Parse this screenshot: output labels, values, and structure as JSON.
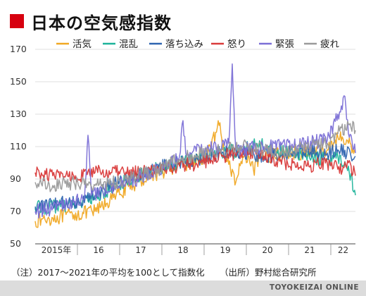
{
  "header": {
    "title": "日本の空気感指数"
  },
  "chart_data": {
    "type": "line",
    "title": "日本の空気感指数",
    "ylim": [
      50,
      170
    ],
    "y_ticks": [
      50,
      70,
      90,
      110,
      130,
      150,
      170
    ],
    "x_range": [
      "2015-01",
      "2022-08"
    ],
    "x_tick_labels": [
      {
        "label": "2015年",
        "year": 2015
      },
      {
        "label": "16",
        "year": 2016
      },
      {
        "label": "17",
        "year": 2017
      },
      {
        "label": "18",
        "year": 2018
      },
      {
        "label": "19",
        "year": 2019
      },
      {
        "label": "20",
        "year": 2020
      },
      {
        "label": "21",
        "year": 2021
      },
      {
        "label": "22",
        "year": 2022
      }
    ],
    "grid": "horizontal",
    "legend_placement": "top",
    "series": [
      {
        "name": "活気",
        "color": "#f0a823",
        "points": [
          [
            "2015-01",
            64
          ],
          [
            "2015-06",
            66
          ],
          [
            "2015-12",
            68
          ],
          [
            "2016-06",
            70
          ],
          [
            "2016-12",
            80
          ],
          [
            "2017-06",
            88
          ],
          [
            "2017-12",
            94
          ],
          [
            "2018-06",
            98
          ],
          [
            "2018-12",
            102
          ],
          [
            "2019-03",
            108
          ],
          [
            "2019-05",
            126
          ],
          [
            "2019-07",
            104
          ],
          [
            "2019-10",
            88
          ],
          [
            "2019-12",
            104
          ],
          [
            "2020-03",
            96
          ],
          [
            "2020-06",
            104
          ],
          [
            "2020-12",
            106
          ],
          [
            "2021-06",
            106
          ],
          [
            "2021-12",
            108
          ],
          [
            "2022-03",
            116
          ],
          [
            "2022-06",
            112
          ],
          [
            "2022-08",
            108
          ]
        ]
      },
      {
        "name": "混乱",
        "color": "#1db39a",
        "points": [
          [
            "2015-01",
            72
          ],
          [
            "2015-06",
            73
          ],
          [
            "2015-12",
            75
          ],
          [
            "2016-06",
            78
          ],
          [
            "2016-12",
            86
          ],
          [
            "2017-06",
            92
          ],
          [
            "2017-12",
            97
          ],
          [
            "2018-06",
            100
          ],
          [
            "2018-12",
            104
          ],
          [
            "2019-06",
            106
          ],
          [
            "2019-12",
            108
          ],
          [
            "2020-04",
            112
          ],
          [
            "2020-12",
            106
          ],
          [
            "2021-06",
            104
          ],
          [
            "2021-12",
            102
          ],
          [
            "2022-03",
            104
          ],
          [
            "2022-06",
            98
          ],
          [
            "2022-08",
            80
          ]
        ]
      },
      {
        "name": "落ち込み",
        "color": "#2e64b0",
        "points": [
          [
            "2015-01",
            73
          ],
          [
            "2015-06",
            74
          ],
          [
            "2015-12",
            76
          ],
          [
            "2016-06",
            80
          ],
          [
            "2016-12",
            88
          ],
          [
            "2017-06",
            93
          ],
          [
            "2017-12",
            97
          ],
          [
            "2018-06",
            100
          ],
          [
            "2018-12",
            103
          ],
          [
            "2019-06",
            106
          ],
          [
            "2019-12",
            106
          ],
          [
            "2020-06",
            104
          ],
          [
            "2020-12",
            106
          ],
          [
            "2021-06",
            108
          ],
          [
            "2021-12",
            106
          ],
          [
            "2022-03",
            108
          ],
          [
            "2022-08",
            104
          ]
        ]
      },
      {
        "name": "怒り",
        "color": "#d93a3a",
        "points": [
          [
            "2015-01",
            94
          ],
          [
            "2015-06",
            92
          ],
          [
            "2015-12",
            92
          ],
          [
            "2016-06",
            94
          ],
          [
            "2016-12",
            94
          ],
          [
            "2017-06",
            94
          ],
          [
            "2017-12",
            96
          ],
          [
            "2018-06",
            98
          ],
          [
            "2018-12",
            100
          ],
          [
            "2019-06",
            104
          ],
          [
            "2019-12",
            106
          ],
          [
            "2020-06",
            104
          ],
          [
            "2020-12",
            100
          ],
          [
            "2021-06",
            98
          ],
          [
            "2021-12",
            100
          ],
          [
            "2022-03",
            96
          ],
          [
            "2022-06",
            100
          ],
          [
            "2022-08",
            92
          ]
        ]
      },
      {
        "name": "緊張",
        "color": "#7b6fd6",
        "points": [
          [
            "2015-01",
            70
          ],
          [
            "2015-06",
            72
          ],
          [
            "2015-12",
            76
          ],
          [
            "2016-03",
            78
          ],
          [
            "2016-04",
            117
          ],
          [
            "2016-05",
            80
          ],
          [
            "2016-12",
            86
          ],
          [
            "2017-06",
            90
          ],
          [
            "2017-12",
            96
          ],
          [
            "2018-03",
            98
          ],
          [
            "2018-06",
            104
          ],
          [
            "2018-07",
            126
          ],
          [
            "2018-08",
            104
          ],
          [
            "2018-12",
            108
          ],
          [
            "2019-06",
            110
          ],
          [
            "2019-08",
            112
          ],
          [
            "2019-09",
            161
          ],
          [
            "2019-10",
            108
          ],
          [
            "2019-12",
            108
          ],
          [
            "2020-06",
            110
          ],
          [
            "2020-12",
            110
          ],
          [
            "2021-06",
            112
          ],
          [
            "2021-12",
            114
          ],
          [
            "2022-03",
            130
          ],
          [
            "2022-05",
            141
          ],
          [
            "2022-06",
            118
          ],
          [
            "2022-08",
            106
          ]
        ]
      },
      {
        "name": "疲れ",
        "color": "#9a9a9a",
        "points": [
          [
            "2015-01",
            88
          ],
          [
            "2015-06",
            86
          ],
          [
            "2015-12",
            88
          ],
          [
            "2016-06",
            86
          ],
          [
            "2016-12",
            88
          ],
          [
            "2017-06",
            92
          ],
          [
            "2017-12",
            96
          ],
          [
            "2018-06",
            102
          ],
          [
            "2018-12",
            106
          ],
          [
            "2019-06",
            108
          ],
          [
            "2019-12",
            110
          ],
          [
            "2020-06",
            108
          ],
          [
            "2020-12",
            106
          ],
          [
            "2021-06",
            110
          ],
          [
            "2021-12",
            112
          ],
          [
            "2022-03",
            118
          ],
          [
            "2022-06",
            124
          ],
          [
            "2022-08",
            120
          ]
        ]
      }
    ]
  },
  "notes": {
    "note": "（注）2017～2021年の平均を100として指数化",
    "source": "（出所）野村総合研究所"
  },
  "footer": {
    "brand": "TOYOKEIZAI ONLINE"
  }
}
